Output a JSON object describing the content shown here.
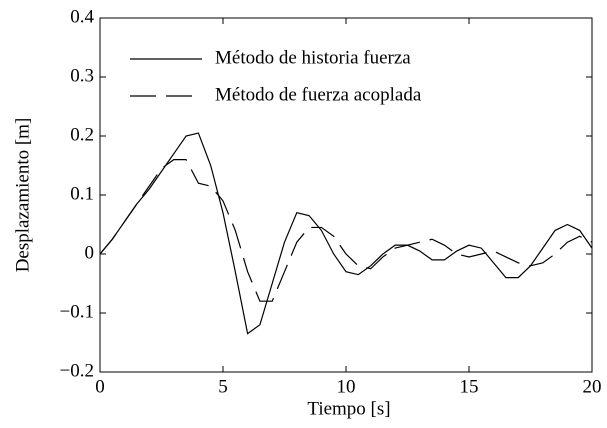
{
  "chart_data": {
    "type": "line",
    "xlabel": "Tiempo [s]",
    "ylabel": "Desplazamiento [m]",
    "x": [
      0,
      0.5,
      1,
      1.5,
      2,
      2.5,
      3,
      3.5,
      4,
      4.5,
      5,
      5.5,
      6,
      6.5,
      7,
      7.5,
      8,
      8.5,
      9,
      9.5,
      10,
      10.5,
      11,
      11.5,
      12,
      12.5,
      13,
      13.5,
      14,
      14.5,
      15,
      15.5,
      16,
      16.5,
      17,
      17.5,
      18,
      18.5,
      19,
      19.5,
      20
    ],
    "series": [
      {
        "name": "Método de historia fuerza",
        "color": "#000000",
        "dash": false,
        "values": [
          0,
          0.025,
          0.055,
          0.085,
          0.11,
          0.14,
          0.17,
          0.2,
          0.205,
          0.15,
          0.07,
          -0.03,
          -0.135,
          -0.12,
          -0.05,
          0.02,
          0.07,
          0.065,
          0.04,
          0.0,
          -0.03,
          -0.035,
          -0.02,
          0.0,
          0.015,
          0.015,
          0.005,
          -0.01,
          -0.01,
          0.005,
          0.015,
          0.01,
          -0.015,
          -0.04,
          -0.04,
          -0.02,
          0.01,
          0.04,
          0.05,
          0.04,
          0.01
        ]
      },
      {
        "name": "Método de fuerza acoplada",
        "color": "#000000",
        "dash": true,
        "values": [
          0,
          0.025,
          0.055,
          0.085,
          0.115,
          0.145,
          0.16,
          0.16,
          0.12,
          0.115,
          0.09,
          0.04,
          -0.03,
          -0.08,
          -0.08,
          -0.03,
          0.02,
          0.045,
          0.045,
          0.03,
          0.0,
          -0.02,
          -0.025,
          -0.005,
          0.01,
          0.015,
          0.02,
          0.025,
          0.015,
          0.0,
          -0.005,
          0.0,
          0.005,
          -0.005,
          -0.015,
          -0.02,
          -0.015,
          0.0,
          0.02,
          0.03,
          0.02
        ]
      }
    ],
    "xlim": [
      0,
      20
    ],
    "xticks": [
      0,
      5,
      10,
      15,
      20
    ],
    "ylim": [
      -0.2,
      0.4
    ],
    "yticks": [
      {
        "value": -0.2,
        "label": "−0.2"
      },
      {
        "value": -0.1,
        "label": "−0.1"
      },
      0,
      0.1,
      0.2,
      0.3,
      0.4
    ],
    "grid": false,
    "legend": "upper left"
  }
}
